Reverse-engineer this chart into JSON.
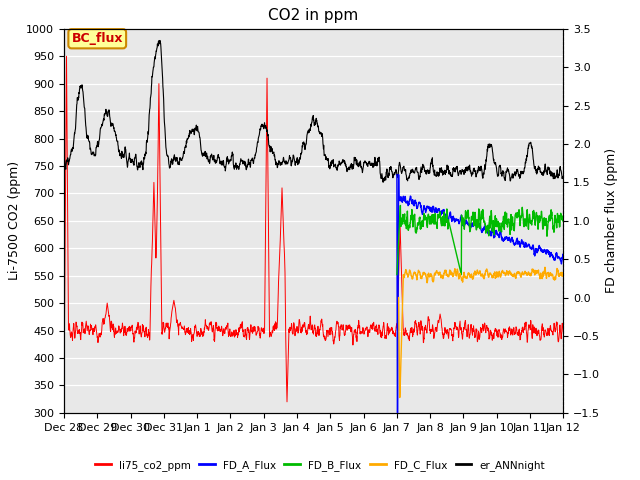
{
  "title": "CO2 in ppm",
  "ylabel_left": "Li-7500 CO2 (ppm)",
  "ylabel_right": "FD chamber flux (ppm)",
  "ylim_left": [
    300,
    1000
  ],
  "ylim_right": [
    -1.5,
    3.5
  ],
  "background_color": "#e8e8e8",
  "annotation_text": "BC_flux",
  "legend_entries": [
    {
      "label": "li75_co2_ppm",
      "color": "#ff0000"
    },
    {
      "label": "FD_A_Flux",
      "color": "#0000ff"
    },
    {
      "label": "FD_B_Flux",
      "color": "#00bb00"
    },
    {
      "label": "FD_C_Flux",
      "color": "#ffaa00"
    },
    {
      "label": "er_ANNnight",
      "color": "#000000"
    }
  ],
  "xtick_labels": [
    "Dec 28",
    "Dec 29",
    "Dec 30",
    "Dec 31",
    "Jan 1",
    "Jan 2",
    "Jan 3",
    "Jan 4",
    "Jan 5",
    "Jan 6",
    "Jan 7",
    "Jan 8",
    "Jan 9",
    "Jan 10",
    "Jan 11",
    "Jan 12"
  ],
  "yticks_left": [
    300,
    350,
    400,
    450,
    500,
    550,
    600,
    650,
    700,
    750,
    800,
    850,
    900,
    950,
    1000
  ],
  "yticks_right": [
    -1.5,
    -1.0,
    -0.5,
    0.0,
    0.5,
    1.0,
    1.5,
    2.0,
    2.5,
    3.0,
    3.5
  ],
  "title_fontsize": 11,
  "label_fontsize": 9,
  "tick_fontsize": 8
}
